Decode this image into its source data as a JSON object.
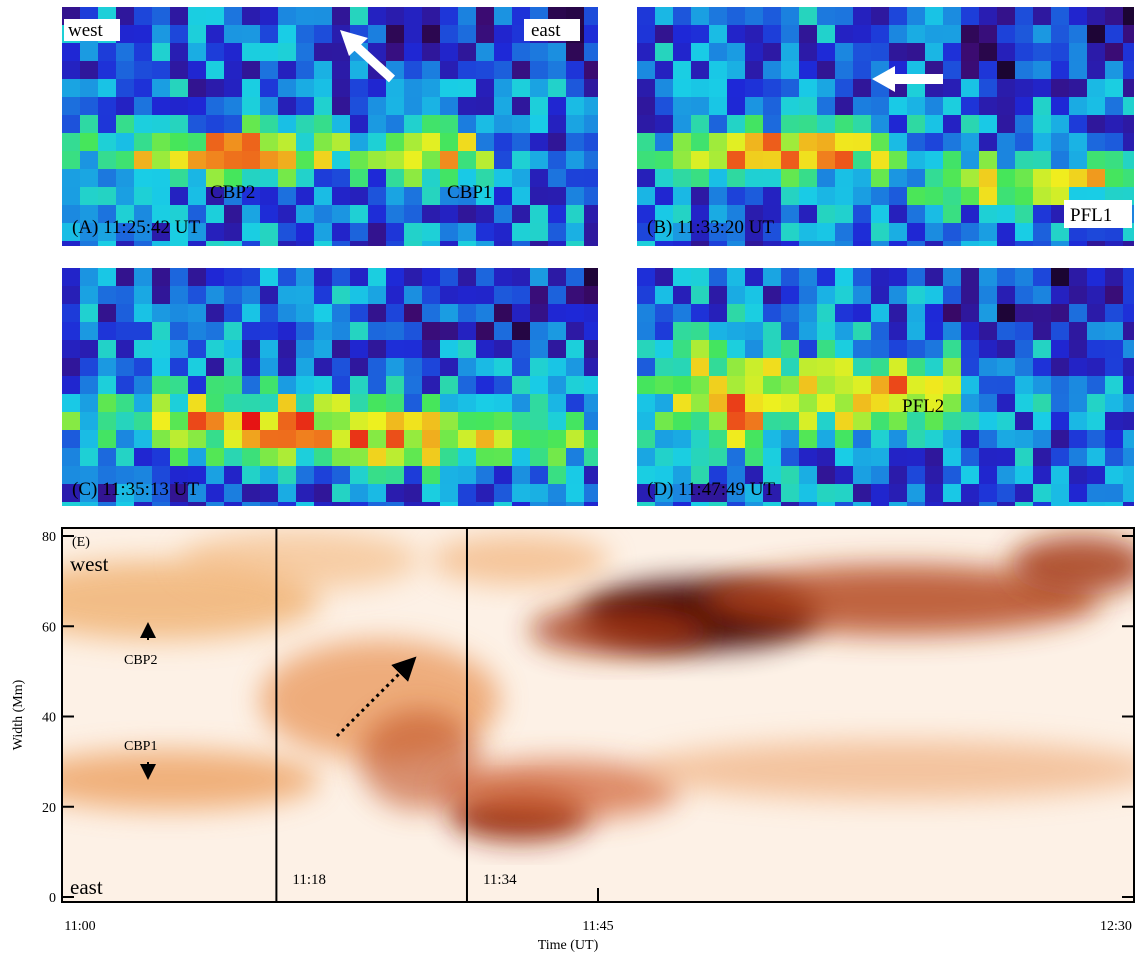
{
  "panels": [
    {
      "label": "(A) 11:25:42 UT",
      "annotations": [
        "west",
        "east",
        "CBP2",
        "CBP1"
      ]
    },
    {
      "label": "(B) 11:33:20 UT",
      "annotations": [
        "PFL1"
      ]
    },
    {
      "label": "(C) 11:35:13 UT"
    },
    {
      "label": "(D) 11:47:49 UT",
      "annotations": [
        "PFL2"
      ]
    }
  ],
  "chart_data": {
    "type": "image",
    "panel_label": "(E)",
    "xlabel": "Time (UT)",
    "ylabel": "Width (Mm)",
    "xlim": [
      0,
      90
    ],
    "xticks": [
      {
        "value": 0,
        "label": "11:00"
      },
      {
        "value": 45,
        "label": "11:45"
      },
      {
        "value": 90,
        "label": "12:30"
      }
    ],
    "ylim": [
      0,
      80
    ],
    "yticks": [
      0,
      20,
      40,
      60,
      80
    ],
    "annotations": [
      "west",
      "east",
      "CBP2",
      "CBP1"
    ],
    "markers": [
      {
        "value": 18,
        "label": "11:18"
      },
      {
        "value": 34,
        "label": "11:34"
      }
    ]
  }
}
